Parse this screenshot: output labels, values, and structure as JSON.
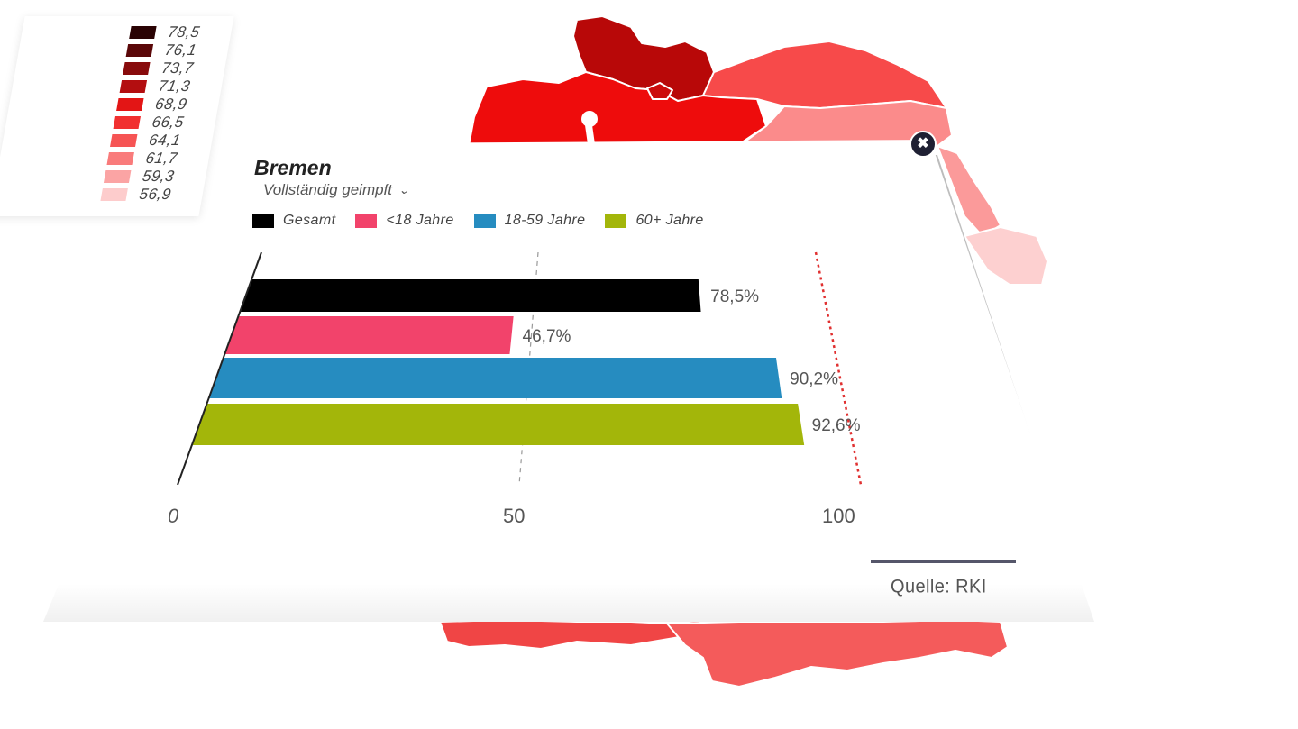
{
  "legend": {
    "items": [
      {
        "label": "78,5",
        "color": "#2a0304"
      },
      {
        "label": "76,1",
        "color": "#5a0708"
      },
      {
        "label": "73,7",
        "color": "#880b0c"
      },
      {
        "label": "71,3",
        "color": "#b30e10"
      },
      {
        "label": "68,9",
        "color": "#e31515"
      },
      {
        "label": "66,5",
        "color": "#f13030"
      },
      {
        "label": "64,1",
        "color": "#f65454"
      },
      {
        "label": "61,7",
        "color": "#f97b7b"
      },
      {
        "label": "59,3",
        "color": "#fba4a4"
      },
      {
        "label": "56,9",
        "color": "#fdcccc"
      }
    ]
  },
  "popup": {
    "title": "Bremen",
    "metric_label": "Vollständig geimpft",
    "close_icon": "close-icon",
    "source": "Quelle: RKI"
  },
  "chart_data": {
    "type": "bar",
    "orientation": "horizontal",
    "xlim": [
      0,
      100
    ],
    "ticks": [
      "0",
      "50",
      "100"
    ],
    "grid": "dashed line at 50, red dotted line at 100",
    "legend_position": "top",
    "series": [
      {
        "name": "Gesamt",
        "value": 78.5,
        "label": "78,5%",
        "color": "#000000"
      },
      {
        "name": "<18 Jahre",
        "value": 46.7,
        "label": "46,7%",
        "color": "#f2436b"
      },
      {
        "name": "18-59 Jahre",
        "value": 90.2,
        "label": "90,2%",
        "color": "#268cc0"
      },
      {
        "name": "60+ Jahre",
        "value": 92.6,
        "label": "92,6%",
        "color": "#a3b60a"
      }
    ]
  }
}
